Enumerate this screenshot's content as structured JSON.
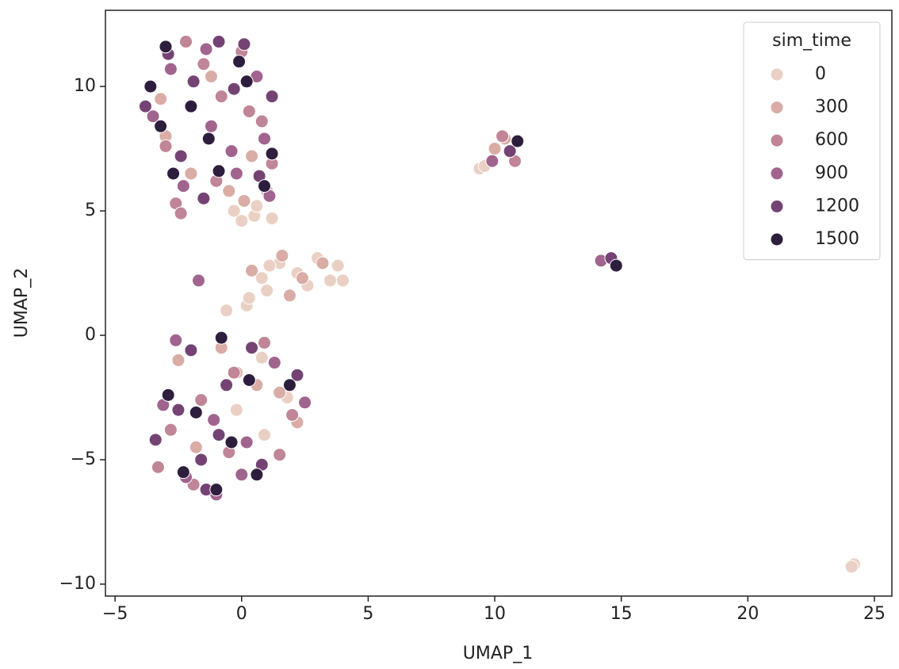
{
  "chart_data": {
    "type": "scatter",
    "x_label": "UMAP_1",
    "y_label": "UMAP_2",
    "legend_title": "sim_time",
    "legend": "upper right",
    "xlim": [
      -5.38,
      25.69
    ],
    "ylim": [
      -10.48,
      13.06
    ],
    "xticks": [
      {
        "value": -5,
        "label": "−5"
      },
      0,
      5,
      10,
      15,
      20,
      25
    ],
    "yticks": [
      {
        "value": -10,
        "label": "−10"
      },
      {
        "value": -5,
        "label": "−5"
      },
      0,
      5,
      10
    ],
    "series": [
      {
        "name": "0",
        "color": "#ead0c4",
        "x": [
          0.2,
          0.8,
          1.5,
          2.2,
          3.0,
          3.5,
          4.0,
          1.0,
          2.6,
          3.8,
          0.5,
          -0.3,
          0.0,
          0.6,
          1.2,
          -0.6,
          0.3,
          1.1,
          0.8,
          9.4,
          9.6,
          24.2,
          24.1,
          -0.2,
          0.9,
          1.8
        ],
        "values": [
          1.2,
          2.3,
          2.9,
          2.5,
          3.1,
          2.2,
          2.2,
          1.8,
          2.0,
          2.8,
          4.8,
          5.0,
          4.6,
          5.2,
          4.7,
          1.0,
          1.5,
          2.8,
          -0.9,
          6.7,
          6.8,
          -9.2,
          -9.3,
          -3.0,
          -4.0,
          -2.5
        ]
      },
      {
        "name": "300",
        "color": "#d9aca5",
        "x": [
          0.4,
          1.6,
          2.4,
          3.2,
          1.9,
          0.1,
          -0.5,
          1.0,
          -2.0,
          -3.0,
          -1.2,
          0.4,
          1.5,
          -0.2,
          2.2,
          10.0,
          10.4,
          -2.5,
          -1.8,
          -0.8,
          0.6,
          -3.2
        ],
        "values": [
          2.6,
          3.2,
          2.3,
          2.9,
          1.6,
          5.4,
          5.8,
          5.8,
          6.5,
          8.0,
          10.4,
          7.2,
          -2.3,
          -1.5,
          -3.5,
          7.5,
          7.9,
          -1.0,
          -4.5,
          -0.5,
          -2.0,
          9.5
        ]
      },
      {
        "name": "600",
        "color": "#c08596",
        "x": [
          -2.2,
          -1.5,
          -0.8,
          0.0,
          0.8,
          -3.0,
          -2.6,
          -1.0,
          0.3,
          1.2,
          -2.8,
          -1.6,
          -0.5,
          0.9,
          2.0,
          -3.3,
          10.3,
          10.8,
          -1.9,
          -0.3,
          1.5,
          -2.4
        ],
        "values": [
          11.8,
          10.9,
          9.6,
          11.4,
          8.6,
          7.6,
          5.3,
          6.2,
          9.0,
          6.9,
          -3.8,
          -2.6,
          -4.7,
          -0.3,
          -3.2,
          -5.3,
          8.0,
          7.0,
          -6.0,
          -1.5,
          -4.8,
          4.9
        ]
      },
      {
        "name": "900",
        "color": "#a0648e",
        "x": [
          -3.5,
          -2.8,
          -1.4,
          -0.4,
          0.6,
          1.1,
          -2.3,
          -1.2,
          -0.2,
          0.9,
          -3.1,
          -2.2,
          -1.0,
          0.2,
          1.3,
          2.5,
          -2.6,
          -1.1,
          0.0,
          14.2,
          9.9,
          -1.7
        ],
        "values": [
          8.8,
          10.7,
          11.5,
          7.4,
          10.4,
          5.6,
          6.0,
          8.4,
          6.5,
          7.9,
          -2.8,
          -5.7,
          -6.4,
          -4.3,
          -1.1,
          -2.7,
          -0.2,
          -3.4,
          -5.6,
          3.0,
          7.0,
          2.2
        ]
      },
      {
        "name": "1200",
        "color": "#744374",
        "x": [
          -3.8,
          -2.9,
          -1.9,
          -0.9,
          0.1,
          1.2,
          -2.4,
          -1.5,
          -0.3,
          0.7,
          -3.4,
          -2.5,
          -1.4,
          -0.6,
          0.8,
          2.2,
          -2.0,
          -0.9,
          0.4,
          14.6,
          10.6,
          -1.6
        ],
        "values": [
          9.2,
          11.3,
          10.2,
          11.8,
          11.7,
          9.6,
          7.2,
          5.5,
          9.9,
          6.4,
          -4.2,
          -3.0,
          -6.2,
          -2.0,
          -5.2,
          -1.6,
          -0.6,
          -4.0,
          -0.5,
          3.1,
          7.4,
          -5.0
        ]
      },
      {
        "name": "1500",
        "color": "#2d1e3e",
        "x": [
          -3.2,
          -2.0,
          -0.9,
          0.2,
          1.2,
          -2.7,
          -1.3,
          -0.1,
          0.9,
          -2.9,
          -1.8,
          -0.4,
          0.6,
          1.9,
          -0.8,
          -2.3,
          14.8,
          10.9,
          -3.6,
          0.3,
          -1.0,
          -3.0
        ],
        "values": [
          8.4,
          9.2,
          6.6,
          10.2,
          7.3,
          6.5,
          7.9,
          11.0,
          6.0,
          -2.4,
          -3.1,
          -4.3,
          -5.6,
          -2.0,
          -0.1,
          -5.5,
          2.8,
          7.8,
          10.0,
          -1.8,
          -6.2,
          11.6
        ]
      }
    ]
  }
}
